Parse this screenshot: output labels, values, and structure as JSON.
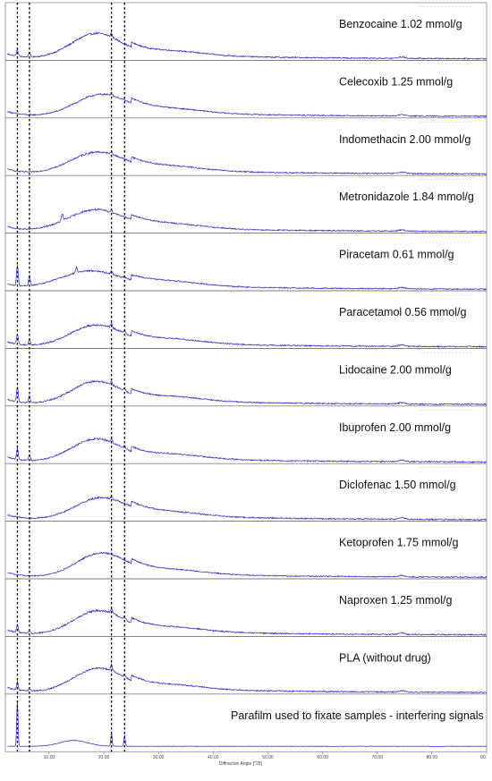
{
  "chart_data": {
    "type": "line",
    "xlabel": "Diffraction Angle [°2θ]",
    "xlim": [
      2,
      90
    ],
    "x_ticks": [
      "10.00",
      "20.00",
      "30.00",
      "40.00",
      "50.00",
      "60.00",
      "70.00",
      "80.00",
      "90."
    ],
    "x_tick_values": [
      10,
      20,
      30,
      40,
      50,
      60,
      70,
      80,
      90
    ],
    "reference_lines_deg": [
      4.2,
      6.4,
      21.4,
      23.8
    ],
    "line_color": "#2c22cc",
    "panels": [
      {
        "label": "Benzocaine 1.02 mmol/g"
      },
      {
        "label": "Celecoxib 1.25 mmol/g"
      },
      {
        "label": "Indomethacin 2.00 mmol/g"
      },
      {
        "label": "Metronidazole 1.84 mmol/g"
      },
      {
        "label": "Piracetam 0.61 mmol/g"
      },
      {
        "label": "Paracetamol 0.56 mmol/g"
      },
      {
        "label": "Lidocaine 2.00 mmol/g"
      },
      {
        "label": "Ibuprofen 2.00 mmol/g"
      },
      {
        "label": "Diclofenac 1.50 mmol/g"
      },
      {
        "label": "Ketoprofen 1.75 mmol/g"
      },
      {
        "label": "Naproxen 1.25 mmol/g"
      },
      {
        "label": "PLA (without drug)"
      },
      {
        "label": "Parafilm used to fixate samples - interfering signals"
      }
    ]
  }
}
